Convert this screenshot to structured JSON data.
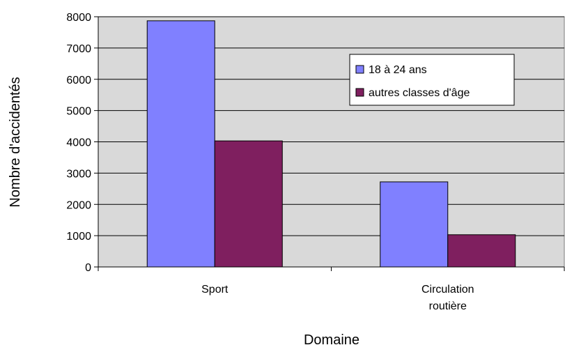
{
  "chart_data": {
    "type": "bar",
    "title": "",
    "xlabel": "Domaine",
    "ylabel": "Nombre d'accidentés",
    "categories": [
      [
        "Sport"
      ],
      [
        "Circulation",
        "routière"
      ]
    ],
    "series": [
      {
        "name": "18 à 24 ans",
        "color": "#8080ff",
        "values": [
          7870,
          2720
        ]
      },
      {
        "name": "autres classes d'âge",
        "color": "#7f1f5f",
        "values": [
          4030,
          1030
        ]
      }
    ],
    "ylim": [
      0,
      8000
    ],
    "yticks": [
      0,
      1000,
      2000,
      3000,
      4000,
      5000,
      6000,
      7000,
      8000
    ],
    "grid": true,
    "plot_background": "#d9d9d9",
    "legend_position": "top-right"
  }
}
